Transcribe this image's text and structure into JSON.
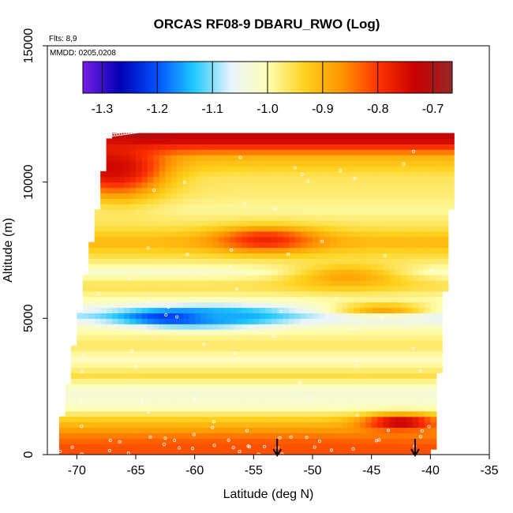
{
  "chart_data": {
    "type": "heatmap",
    "title": "ORCAS RF08-9 DBARU_RWO (Log)",
    "annotations": [
      "Flts: 8,9",
      "MMDD: 0205,0208"
    ],
    "xlabel": "Latitude (deg N)",
    "ylabel": "Altitude (m)",
    "xlim": [
      -72.5,
      -35
    ],
    "ylim": [
      0,
      15000
    ],
    "x_ticks": [
      -70,
      -65,
      -60,
      -55,
      -50,
      -45,
      -40,
      -35
    ],
    "x_tick_labels": [
      "-70",
      "-65",
      "-60",
      "-55",
      "-50",
      "-45",
      "-40",
      "-35"
    ],
    "y_ticks": [
      0,
      5000,
      10000,
      15000
    ],
    "y_tick_labels": [
      "0",
      "5000",
      "10000",
      "15000"
    ],
    "grid": false,
    "colorbar": {
      "placement": "top-inset",
      "range": [
        -1.335,
        -0.665
      ],
      "ticks": [
        -1.3,
        -1.2,
        -1.1,
        -1.0,
        -0.9,
        -0.8,
        -0.7
      ],
      "tick_labels": [
        "-1.3",
        "-1.2",
        "-1.1",
        "-1.0",
        "-0.9",
        "-0.8",
        "-0.7"
      ],
      "colors": [
        "#7a1ee6",
        "#0000b4",
        "#0050ff",
        "#1ec8ff",
        "#e8f4ff",
        "#ffffb4",
        "#ffd21e",
        "#ff9600",
        "#ff3200",
        "#c80000",
        "#962828"
      ]
    },
    "layers": [
      {
        "altitude": 11600,
        "value": -0.72
      },
      {
        "altitude": 10900,
        "value": -0.9
      },
      {
        "altitude": 10200,
        "value": -0.96
      },
      {
        "altitude": 9600,
        "value": -0.97
      },
      {
        "altitude": 9000,
        "value": -0.99
      },
      {
        "altitude": 8400,
        "value": -0.96
      },
      {
        "altitude": 7800,
        "value": -0.9
      },
      {
        "altitude": 7200,
        "value": -0.96
      },
      {
        "altitude": 6700,
        "value": -1.02
      },
      {
        "altitude": 6200,
        "value": -0.95
      },
      {
        "altitude": 5700,
        "value": -1.0
      },
      {
        "altitude": 5100,
        "value": -1.08
      },
      {
        "altitude": 4600,
        "value": -1.0
      },
      {
        "altitude": 4000,
        "value": -0.96
      },
      {
        "altitude": 3500,
        "value": -1.01
      },
      {
        "altitude": 2900,
        "value": -0.95
      },
      {
        "altitude": 2400,
        "value": -1.03
      },
      {
        "altitude": 1800,
        "value": -1.02
      },
      {
        "altitude": 1300,
        "value": -0.93
      },
      {
        "altitude": 800,
        "value": -0.86
      },
      {
        "altitude": 300,
        "value": -0.82
      }
    ],
    "features": [
      {
        "lat": [
          -70,
          -63
        ],
        "altitude": [
          9300,
          11700
        ],
        "value": -0.76
      },
      {
        "lat": [
          -71,
          -65
        ],
        "altitude": [
          10000,
          11200
        ],
        "value": -0.74
      },
      {
        "lat": [
          -66,
          -63
        ],
        "altitude": [
          11700,
          12000
        ],
        "value": -0.7
      },
      {
        "lat": [
          -58,
          -50
        ],
        "altitude": [
          7500,
          8300
        ],
        "value": -0.78
      },
      {
        "lat": [
          -66,
          -56
        ],
        "altitude": [
          4800,
          5300
        ],
        "value": -1.26
      },
      {
        "lat": [
          -62,
          -52
        ],
        "altitude": [
          4800,
          5400
        ],
        "value": -1.15
      },
      {
        "lat": [
          -52,
          -42
        ],
        "altitude": [
          6100,
          7000
        ],
        "value": -0.88
      },
      {
        "lat": [
          -48,
          -40
        ],
        "altitude": [
          5200,
          5500
        ],
        "value": -0.88
      },
      {
        "lat": [
          -45,
          -40
        ],
        "altitude": [
          1000,
          1400
        ],
        "value": -0.72
      },
      {
        "lat": [
          -70,
          -40
        ],
        "altitude": [
          0,
          500
        ],
        "value": -0.82
      }
    ],
    "markers": [
      {
        "type": "down-arrow",
        "lat": -53
      },
      {
        "type": "down-arrow",
        "lat": -41.3
      }
    ]
  }
}
